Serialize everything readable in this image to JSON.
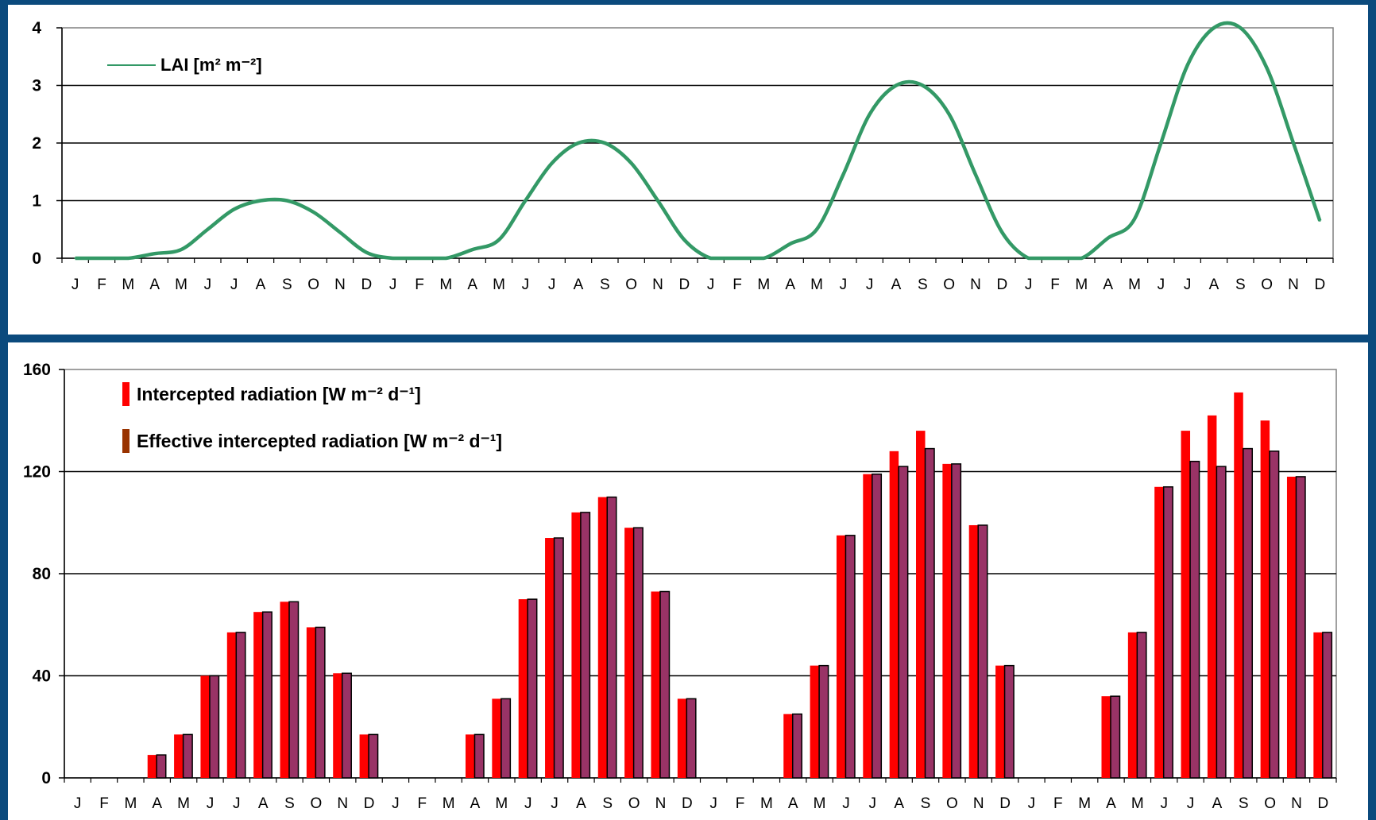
{
  "chart_data": [
    {
      "type": "line",
      "title": "",
      "xlabel": "",
      "ylabel": "",
      "ylim": [
        0,
        4
      ],
      "yticks": [
        "0",
        "1",
        "2",
        "3",
        "4"
      ],
      "grid": true,
      "legend_position": "top-left",
      "categories": [
        "J",
        "F",
        "M",
        "A",
        "M",
        "J",
        "J",
        "A",
        "S",
        "O",
        "N",
        "D",
        "J",
        "F",
        "M",
        "A",
        "M",
        "J",
        "J",
        "A",
        "S",
        "O",
        "N",
        "D",
        "J",
        "F",
        "M",
        "A",
        "M",
        "J",
        "J",
        "A",
        "S",
        "O",
        "N",
        "D",
        "J",
        "F",
        "M",
        "A",
        "M",
        "J",
        "J",
        "A",
        "S",
        "O",
        "N",
        "D"
      ],
      "series": [
        {
          "name": "LAI [m² m⁻²]",
          "color": "#339966",
          "values": [
            0,
            0,
            0,
            0.08,
            0.15,
            0.5,
            0.85,
            1.0,
            1.0,
            0.8,
            0.45,
            0.1,
            0,
            0,
            0,
            0.15,
            0.32,
            1.0,
            1.65,
            2.0,
            2.0,
            1.65,
            1.0,
            0.32,
            0,
            0,
            0,
            0.25,
            0.5,
            1.45,
            2.5,
            3.0,
            3.0,
            2.5,
            1.45,
            0.45,
            0,
            0,
            0,
            0.35,
            0.68,
            2.0,
            3.35,
            4.0,
            4.0,
            3.3,
            2.0,
            0.65
          ]
        }
      ]
    },
    {
      "type": "bar",
      "title": "",
      "xlabel": "",
      "ylabel": "",
      "ylim": [
        0,
        160
      ],
      "yticks": [
        "0",
        "40",
        "80",
        "120",
        "160"
      ],
      "grid": true,
      "legend_position": "top-left",
      "categories": [
        "J",
        "F",
        "M",
        "A",
        "M",
        "J",
        "J",
        "A",
        "S",
        "O",
        "N",
        "D",
        "J",
        "F",
        "M",
        "A",
        "M",
        "J",
        "J",
        "A",
        "S",
        "O",
        "N",
        "D",
        "J",
        "F",
        "M",
        "A",
        "M",
        "J",
        "J",
        "A",
        "S",
        "O",
        "N",
        "D",
        "J",
        "F",
        "M",
        "A",
        "M",
        "J",
        "J",
        "A",
        "S",
        "O",
        "N",
        "D"
      ],
      "series": [
        {
          "name": "Intercepted radiation [W m⁻² d⁻¹]",
          "color": "#ff0000",
          "values": [
            0,
            0,
            0,
            9,
            17,
            40,
            57,
            65,
            69,
            59,
            41,
            17,
            0,
            0,
            0,
            17,
            31,
            70,
            94,
            104,
            110,
            98,
            73,
            31,
            0,
            0,
            0,
            25,
            44,
            95,
            119,
            128,
            136,
            123,
            99,
            44,
            0,
            0,
            0,
            32,
            57,
            114,
            136,
            142,
            151,
            140,
            118,
            57
          ]
        },
        {
          "name": "Effective intercepted radiation [W m⁻² d⁻¹]",
          "color": "#993366",
          "values": [
            0,
            0,
            0,
            9,
            17,
            40,
            57,
            65,
            69,
            59,
            41,
            17,
            0,
            0,
            0,
            17,
            31,
            70,
            94,
            104,
            110,
            98,
            73,
            31,
            0,
            0,
            0,
            25,
            44,
            95,
            119,
            122,
            129,
            123,
            99,
            44,
            0,
            0,
            0,
            32,
            57,
            114,
            124,
            122,
            129,
            128,
            118,
            57
          ]
        }
      ]
    }
  ]
}
